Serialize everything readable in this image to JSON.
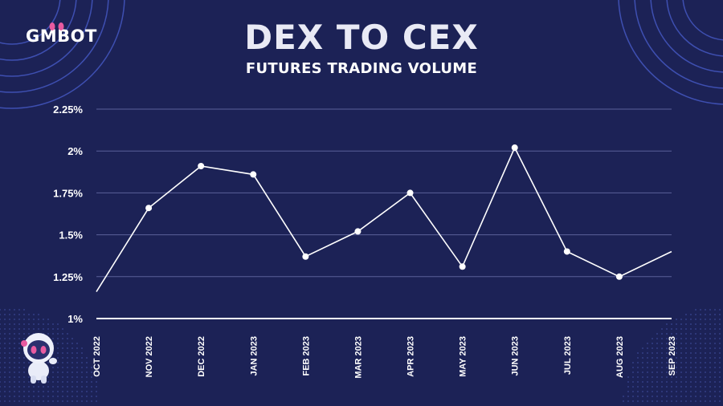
{
  "brand": {
    "name": "GMBOT"
  },
  "header": {
    "title": "DEX TO CEX",
    "subtitle": "FUTURES TRADING VOLUME"
  },
  "colors": {
    "background": "#1c2256",
    "line": "#ffffff",
    "grid": "#5a6099",
    "accent_pink": "#e85aa0",
    "ring": "#4a5fd0"
  },
  "icons": [
    "gmbot-logo",
    "robot-mascot-icon"
  ],
  "chart_data": {
    "type": "line",
    "title": "DEX TO CEX",
    "subtitle": "FUTURES TRADING VOLUME",
    "xlabel": "",
    "ylabel": "",
    "categories": [
      "OCT 2022",
      "NOV 2022",
      "DEC 2022",
      "JAN 2023",
      "FEB 2023",
      "MAR 2023",
      "APR 2023",
      "MAY 2023",
      "JUN 2023",
      "JUL 2023",
      "AUG 2023",
      "SEP 2023"
    ],
    "values": [
      1.16,
      1.66,
      1.91,
      1.86,
      1.37,
      1.52,
      1.75,
      1.31,
      2.02,
      1.4,
      1.25,
      1.4
    ],
    "ylim": [
      1.0,
      2.25
    ],
    "yticks": [
      "1%",
      "1.25%",
      "1.5%",
      "1.75%",
      "2%",
      "2.25%"
    ],
    "ytick_values": [
      1.0,
      1.25,
      1.5,
      1.75,
      2.0,
      2.25
    ],
    "grid": true,
    "legend": "none"
  }
}
